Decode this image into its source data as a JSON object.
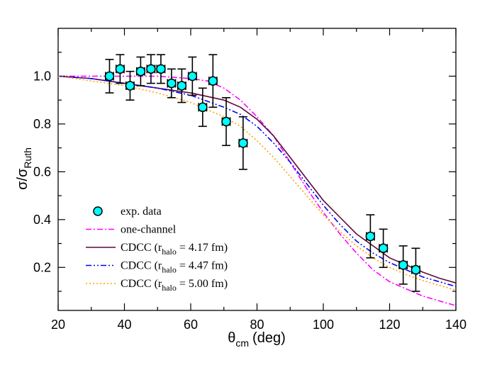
{
  "chart_data": {
    "type": "scatter",
    "xlabel": {
      "main": "θ",
      "sub": "cm",
      "unit": "(deg)"
    },
    "ylabel": {
      "main": "σ/σ",
      "sub": "Ruth"
    },
    "xlim": [
      20,
      140
    ],
    "ylim": [
      0.02,
      1.2
    ],
    "xticks": [
      20,
      40,
      60,
      80,
      100,
      120,
      140
    ],
    "yticks": [
      0.2,
      0.4,
      0.6,
      0.8,
      1.0
    ],
    "xtick_labels": [
      "20",
      "40",
      "60",
      "80",
      "100",
      "120",
      "140"
    ],
    "ytick_labels": [
      "0.2",
      "0.4",
      "0.6",
      "0.8",
      "1.0"
    ],
    "legend_position": "bottom-left",
    "series": [
      {
        "name": "exp. data",
        "kind": "points",
        "color": "#00ffff",
        "points": [
          {
            "x": 35.5,
            "y": 1.0,
            "xerr": 1.2,
            "yerr": 0.07
          },
          {
            "x": 38.7,
            "y": 1.03,
            "xerr": 1.2,
            "yerr": 0.06
          },
          {
            "x": 41.7,
            "y": 0.96,
            "xerr": 1.2,
            "yerr": 0.06
          },
          {
            "x": 44.9,
            "y": 1.02,
            "xerr": 1.2,
            "yerr": 0.06
          },
          {
            "x": 48.0,
            "y": 1.03,
            "xerr": 1.2,
            "yerr": 0.06
          },
          {
            "x": 51.0,
            "y": 1.03,
            "xerr": 1.2,
            "yerr": 0.06
          },
          {
            "x": 54.2,
            "y": 0.97,
            "xerr": 1.2,
            "yerr": 0.06
          },
          {
            "x": 57.3,
            "y": 0.96,
            "xerr": 1.2,
            "yerr": 0.07
          },
          {
            "x": 60.5,
            "y": 1.0,
            "xerr": 1.2,
            "yerr": 0.08
          },
          {
            "x": 63.6,
            "y": 0.87,
            "xerr": 1.2,
            "yerr": 0.08
          },
          {
            "x": 66.7,
            "y": 0.98,
            "xerr": 1.2,
            "yerr": 0.11
          },
          {
            "x": 70.7,
            "y": 0.81,
            "xerr": 1.2,
            "yerr": 0.1
          },
          {
            "x": 75.8,
            "y": 0.72,
            "xerr": 1.2,
            "yerr": 0.11
          },
          {
            "x": 114.2,
            "y": 0.33,
            "xerr": 1.2,
            "yerr": 0.09
          },
          {
            "x": 118.1,
            "y": 0.28,
            "xerr": 1.2,
            "yerr": 0.08
          },
          {
            "x": 124.1,
            "y": 0.21,
            "xerr": 1.2,
            "yerr": 0.08
          },
          {
            "x": 127.9,
            "y": 0.19,
            "xerr": 1.2,
            "yerr": 0.09
          }
        ]
      },
      {
        "name": "one-channel",
        "kind": "line",
        "color": "#ff00ff",
        "dash": "8,3,2,3",
        "x": [
          20,
          30,
          40,
          50,
          60,
          65,
          70,
          75,
          80,
          85,
          90,
          95,
          100,
          105,
          110,
          115,
          120,
          125,
          130,
          135,
          140
        ],
        "y": [
          1.0,
          1.0,
          1.0,
          1.0,
          0.99,
          0.98,
          0.95,
          0.9,
          0.83,
          0.75,
          0.64,
          0.53,
          0.43,
          0.34,
          0.26,
          0.19,
          0.14,
          0.11,
          0.08,
          0.06,
          0.04
        ]
      },
      {
        "name": "CDCC (r_halo = 4.17 fm)",
        "legend_main": "CDCC (r",
        "legend_sub": "halo",
        "legend_tail": " = 4.17 fm)",
        "kind": "line",
        "color": "#5c0a3a",
        "dash": "",
        "x": [
          20,
          30,
          40,
          50,
          60,
          70,
          75,
          80,
          85,
          90,
          95,
          100,
          105,
          110,
          115,
          120,
          125,
          130,
          135,
          140
        ],
        "y": [
          1.0,
          0.99,
          0.97,
          0.95,
          0.93,
          0.9,
          0.87,
          0.82,
          0.75,
          0.66,
          0.57,
          0.48,
          0.41,
          0.34,
          0.29,
          0.24,
          0.21,
          0.18,
          0.155,
          0.135
        ]
      },
      {
        "name": "CDCC (r_halo = 4.47 fm)",
        "legend_main": "CDCC (r",
        "legend_sub": "halo",
        "legend_tail": " = 4.47 fm)",
        "kind": "line",
        "color": "#0000ff",
        "dash": "8,3,2,3,2,3",
        "x": [
          20,
          30,
          40,
          50,
          60,
          70,
          75,
          80,
          85,
          90,
          95,
          100,
          105,
          110,
          115,
          120,
          125,
          130,
          135,
          140
        ],
        "y": [
          1.0,
          0.99,
          0.97,
          0.95,
          0.92,
          0.87,
          0.84,
          0.79,
          0.72,
          0.64,
          0.55,
          0.46,
          0.38,
          0.31,
          0.26,
          0.22,
          0.19,
          0.16,
          0.14,
          0.12
        ]
      },
      {
        "name": "CDCC (r_halo = 5.00 fm)",
        "legend_main": "CDCC (r",
        "legend_sub": "halo",
        "legend_tail": " = 5.00 fm)",
        "kind": "line",
        "color": "#ffa000",
        "dash": "2,3",
        "x": [
          20,
          30,
          40,
          50,
          60,
          70,
          75,
          80,
          85,
          90,
          95,
          100,
          105,
          110,
          115,
          120,
          125,
          130,
          135,
          140
        ],
        "y": [
          1.0,
          0.98,
          0.96,
          0.93,
          0.89,
          0.83,
          0.79,
          0.73,
          0.66,
          0.58,
          0.5,
          0.42,
          0.35,
          0.29,
          0.24,
          0.2,
          0.17,
          0.145,
          0.125,
          0.105
        ]
      }
    ]
  }
}
